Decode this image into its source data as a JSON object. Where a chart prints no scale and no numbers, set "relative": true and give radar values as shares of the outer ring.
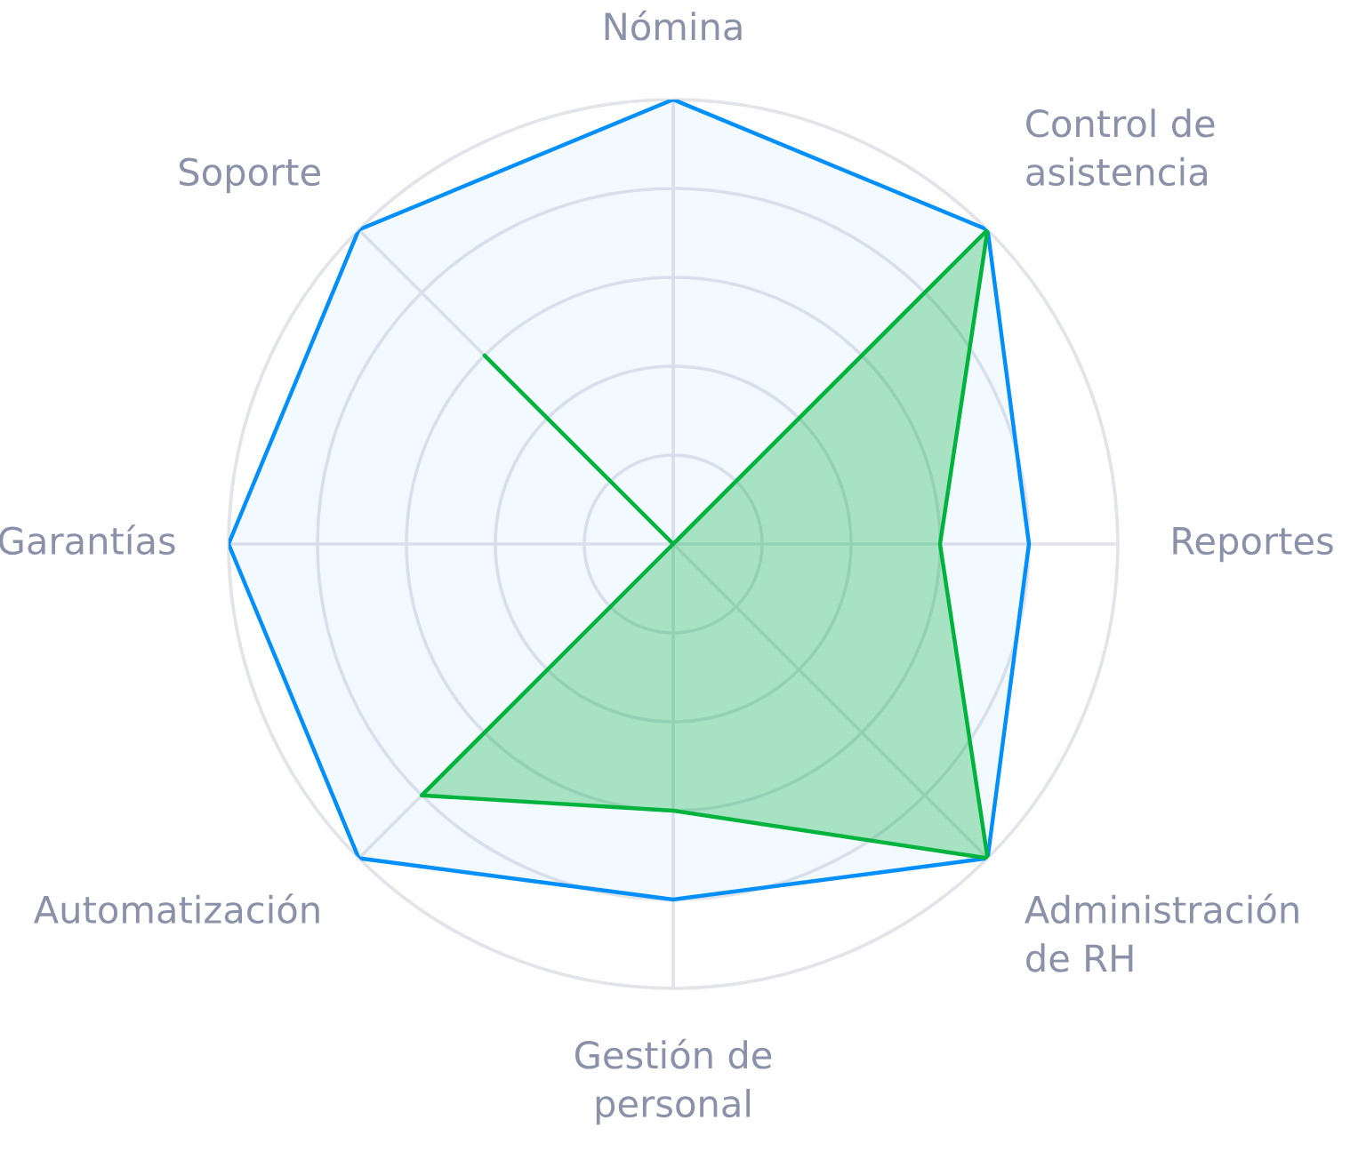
{
  "chart_data": {
    "type": "radar",
    "categories": [
      "Nómina",
      "Control de\nasistencia",
      "Reportes",
      "Administración\nde RH",
      "Gestión de\npersonal",
      "Automatización",
      "Garantías",
      "Soporte"
    ],
    "relative": true,
    "grid": true,
    "series": [
      {
        "color": "#008ffb",
        "values": [
          1,
          1,
          0.8,
          1,
          0.8,
          1,
          1,
          1
        ]
      },
      {
        "color": "#00b33c",
        "values": [
          0,
          1,
          0.6,
          1,
          0.6,
          0.8,
          0,
          0.6
        ]
      }
    ]
  }
}
